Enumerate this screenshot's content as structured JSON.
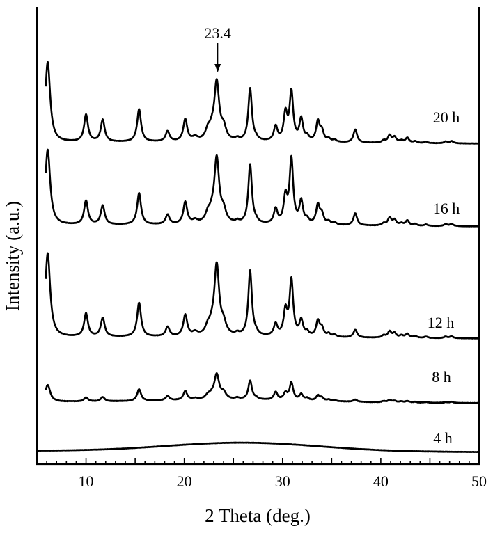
{
  "chart_data": {
    "type": "line",
    "title": "",
    "xlabel": "2 Theta (deg.)",
    "ylabel": "Intensity (a.u.)",
    "xlim": [
      5,
      50
    ],
    "x_ticks": [
      10,
      20,
      30,
      40,
      50
    ],
    "x_tick_labels": [
      "10",
      "20",
      "30",
      "40",
      "50"
    ],
    "y_ticks": [],
    "grid": false,
    "legend": "none",
    "annotations": [
      {
        "text": "23.4",
        "x": 23.4,
        "series": "20 h",
        "arrow": "down"
      }
    ],
    "peak_widths": [
      {
        "max_2theta": 7,
        "fwhm": 0.3
      },
      {
        "max_2theta": 21,
        "fwhm": 0.24
      },
      {
        "max_2theta": 24,
        "fwhm": 0.3
      },
      {
        "max_2theta": 50,
        "fwhm": 0.22
      }
    ],
    "peaks_2theta": [
      6.1,
      10.0,
      11.7,
      15.4,
      18.3,
      20.1,
      21.1,
      22.4,
      22.8,
      23.3,
      24.0,
      25.4,
      26.7,
      27.3,
      29.3,
      30.3,
      30.9,
      31.9,
      32.5,
      33.6,
      34.0,
      34.7,
      35.3,
      37.4,
      40.3,
      40.9,
      41.4,
      42.1,
      42.7,
      43.5,
      44.6,
      46.6,
      47.2
    ],
    "series": [
      {
        "name": "20 h",
        "baseline_start": 0.44,
        "baseline_end": 0.25,
        "hump": 0.12,
        "noise": 0.05,
        "peaks": [
          10.95,
          3.7,
          3.0,
          4.45,
          1.4,
          3.0,
          0.5,
          1.2,
          1.0,
          7.9,
          1.6,
          0.3,
          7.2,
          0.3,
          2.0,
          3.7,
          6.65,
          3.0,
          0.6,
          2.7,
          1.4,
          0.4,
          0.3,
          1.8,
          0.3,
          1.0,
          0.75,
          0.3,
          0.7,
          0.25,
          0.2,
          0.25,
          0.3
        ]
      },
      {
        "name": "16 h",
        "baseline_start": 0.44,
        "baseline_end": 0.25,
        "hump": 0.12,
        "noise": 0.05,
        "peaks": [
          10.3,
          3.25,
          2.6,
          4.3,
          1.3,
          3.0,
          0.45,
          1.1,
          0.9,
          8.85,
          1.5,
          0.3,
          8.1,
          0.3,
          2.0,
          3.55,
          8.8,
          3.05,
          0.55,
          2.6,
          1.35,
          0.4,
          0.3,
          1.65,
          0.3,
          1.05,
          0.75,
          0.3,
          0.7,
          0.25,
          0.2,
          0.25,
          0.3
        ]
      },
      {
        "name": "12 h",
        "baseline_start": 0.44,
        "baseline_end": 0.25,
        "hump": 0.12,
        "noise": 0.05,
        "peaks": [
          11.45,
          3.15,
          2.55,
          4.65,
          1.3,
          2.9,
          0.45,
          1.0,
          0.8,
          9.6,
          1.4,
          0.3,
          8.9,
          0.3,
          1.6,
          3.35,
          7.6,
          2.1,
          0.55,
          2.1,
          1.1,
          0.4,
          0.3,
          1.05,
          0.3,
          0.85,
          0.6,
          0.3,
          0.55,
          0.25,
          0.2,
          0.2,
          0.25
        ]
      },
      {
        "name": "8 h",
        "baseline_start": 0.44,
        "baseline_end": 0.25,
        "hump": 0.35,
        "noise": 0.06,
        "peaks": [
          2.3,
          0.55,
          0.6,
          1.6,
          0.6,
          1.2,
          0.2,
          0.5,
          0.4,
          3.35,
          0.8,
          0.2,
          2.6,
          0.2,
          1.05,
          0.9,
          2.35,
          0.8,
          0.3,
          0.7,
          0.4,
          0.2,
          0.15,
          0.3,
          0.15,
          0.3,
          0.2,
          0.15,
          0.2,
          0.1,
          0.1,
          0.1,
          0.15
        ]
      },
      {
        "name": "4 h",
        "baseline_start": 0.2,
        "baseline_end": 0.03,
        "hump": 1.2,
        "noise": 0.04,
        "peaks": [
          0,
          0,
          0,
          0,
          0,
          0,
          0,
          0,
          0,
          0,
          0,
          0,
          0,
          0,
          0,
          0,
          0,
          0,
          0,
          0,
          0,
          0,
          0,
          0,
          0,
          0,
          0,
          0,
          0,
          0,
          0,
          0,
          0
        ]
      }
    ]
  }
}
